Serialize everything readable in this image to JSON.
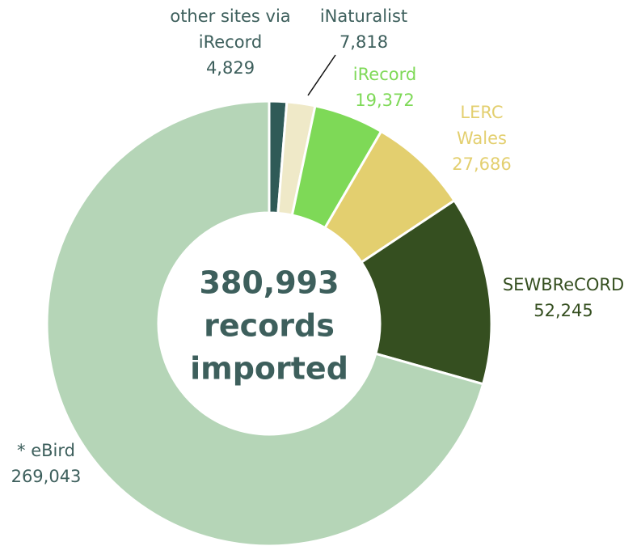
{
  "chart_data": {
    "type": "donut",
    "categories": [
      "other sites via iRecord",
      "iNaturalist",
      "iRecord",
      "LERC Wales",
      "SEWBReCORD",
      "* eBird"
    ],
    "values": [
      4829,
      7818,
      19372,
      27686,
      52245,
      269043
    ],
    "value_labels": [
      "4,829",
      "7,818",
      "19,372",
      "27,686",
      "52,245",
      "269,043"
    ],
    "colors": [
      "#2f5a57",
      "#efe9c8",
      "#7ed957",
      "#e3cf6f",
      "#354f20",
      "#b5d5b7"
    ],
    "label_colors": [
      "#3d5f5c",
      "#3d5f5c",
      "#7ed957",
      "#e3cf6f",
      "#354f20",
      "#3d5f5c"
    ],
    "center_text": [
      "380,993",
      "records",
      "imported"
    ]
  }
}
